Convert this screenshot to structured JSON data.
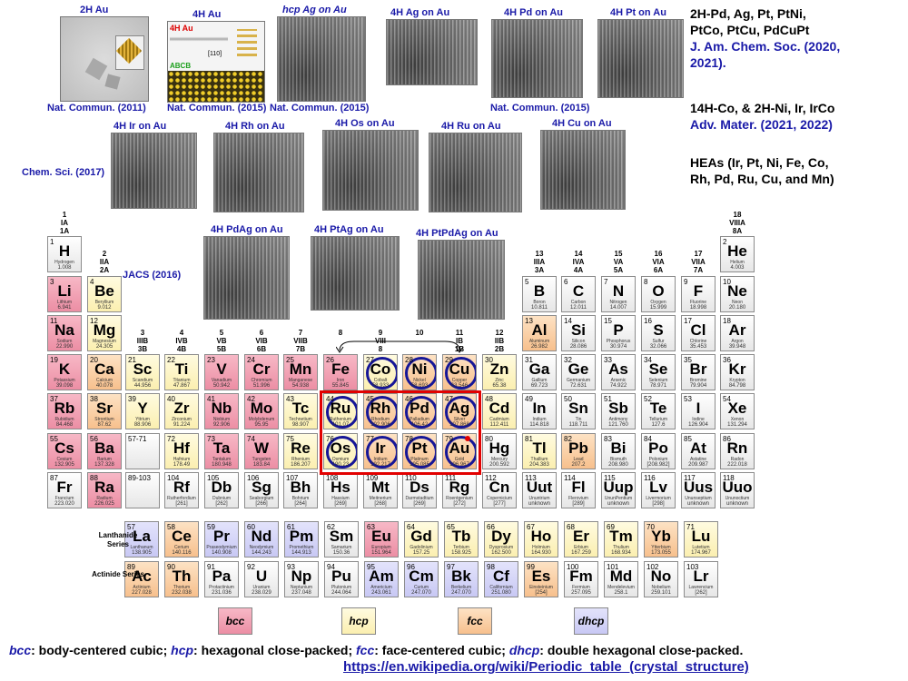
{
  "tem_panels": [
    {
      "label": "2H Au",
      "ref": "Nat. Commun. (2011)"
    },
    {
      "label": "4H Au",
      "ref": "Nat. Commun. (2015)",
      "red_text": "4H Au",
      "green_text": "ABCB",
      "inset": "[110]"
    },
    {
      "label": "hcp Ag on Au",
      "ref": "Nat. Commun. (2015)"
    },
    {
      "label": "4H Ag on Au"
    },
    {
      "label": "4H Pd on Au"
    },
    {
      "label": "4H Pt on Au"
    },
    {
      "label": "4H Ir on Au",
      "ref": "Chem. Sci. (2017)"
    },
    {
      "label": "4H Rh on Au"
    },
    {
      "label": "4H Os on Au"
    },
    {
      "label": "4H Ru on Au"
    },
    {
      "label": "4H Cu on Au"
    },
    {
      "label": "4H PdAg on Au",
      "ref": "JACS (2016)"
    },
    {
      "label": "4H PtAg on Au"
    },
    {
      "label": "4H PtPdAg on Au"
    }
  ],
  "right_text": {
    "block1": [
      "2H-Pd, Ag, Pt, PtNi,",
      "PtCo, PtCu, PdCuPt"
    ],
    "block1_ref": [
      "J. Am. Chem. Soc. (2020,",
      "2021)."
    ],
    "block2": [
      "14H-Co, & 2H-Ni, Ir, IrCo"
    ],
    "block2_ref": [
      "Adv. Mater. (2021, 2022)"
    ],
    "block3": [
      "HEAs (Ir, Pt, Ni, Fe, Co,",
      "Rh, Pd, Ru, Cu, and Mn)"
    ]
  },
  "group_headers": [
    {
      "g": "1",
      "lines": [
        "1",
        "IA",
        "1A"
      ]
    },
    {
      "g": "2",
      "lines": [
        "2",
        "IIA",
        "2A"
      ]
    },
    {
      "g": "3",
      "lines": [
        "3",
        "IIIB",
        "3B"
      ]
    },
    {
      "g": "4",
      "lines": [
        "4",
        "IVB",
        "4B"
      ]
    },
    {
      "g": "5",
      "lines": [
        "5",
        "VB",
        "5B"
      ]
    },
    {
      "g": "6",
      "lines": [
        "6",
        "VIB",
        "6B"
      ]
    },
    {
      "g": "7",
      "lines": [
        "7",
        "VIIB",
        "7B"
      ]
    },
    {
      "g": "8",
      "lines": [
        "8"
      ]
    },
    {
      "g": "9",
      "lines": [
        "9",
        "VIII",
        "8"
      ]
    },
    {
      "g": "10",
      "lines": [
        "10"
      ]
    },
    {
      "g": "11",
      "lines": [
        "11",
        "IB",
        "1B"
      ]
    },
    {
      "g": "12",
      "lines": [
        "12",
        "IIB",
        "2B"
      ]
    },
    {
      "g": "13",
      "lines": [
        "13",
        "IIIA",
        "3A"
      ]
    },
    {
      "g": "14",
      "lines": [
        "14",
        "IVA",
        "4A"
      ]
    },
    {
      "g": "15",
      "lines": [
        "15",
        "VA",
        "5A"
      ]
    },
    {
      "g": "16",
      "lines": [
        "16",
        "VIA",
        "6A"
      ]
    },
    {
      "g": "17",
      "lines": [
        "17",
        "VIIA",
        "7A"
      ]
    },
    {
      "g": "18",
      "lines": [
        "18",
        "VIIIA",
        "8A"
      ]
    }
  ],
  "elements": [
    {
      "z": "1",
      "s": "H",
      "n": "Hydrogen",
      "m": "1.008",
      "c": "other",
      "g": 1,
      "p": 1
    },
    {
      "z": "2",
      "s": "He",
      "n": "Helium",
      "m": "4.003",
      "c": "other",
      "g": 18,
      "p": 1
    },
    {
      "z": "3",
      "s": "Li",
      "n": "Lithium",
      "m": "6.941",
      "c": "bcc",
      "g": 1,
      "p": 2
    },
    {
      "z": "4",
      "s": "Be",
      "n": "Beryllium",
      "m": "9.012",
      "c": "hcp",
      "g": 2,
      "p": 2
    },
    {
      "z": "5",
      "s": "B",
      "n": "Boron",
      "m": "10.811",
      "c": "other",
      "g": 13,
      "p": 2
    },
    {
      "z": "6",
      "s": "C",
      "n": "Carbon",
      "m": "12.011",
      "c": "other",
      "g": 14,
      "p": 2
    },
    {
      "z": "7",
      "s": "N",
      "n": "Nitrogen",
      "m": "14.007",
      "c": "other",
      "g": 15,
      "p": 2
    },
    {
      "z": "8",
      "s": "O",
      "n": "Oxygen",
      "m": "15.999",
      "c": "other",
      "g": 16,
      "p": 2
    },
    {
      "z": "9",
      "s": "F",
      "n": "Fluorine",
      "m": "18.998",
      "c": "other",
      "g": 17,
      "p": 2
    },
    {
      "z": "10",
      "s": "Ne",
      "n": "Neon",
      "m": "20.180",
      "c": "other",
      "g": 18,
      "p": 2
    },
    {
      "z": "11",
      "s": "Na",
      "n": "Sodium",
      "m": "22.990",
      "c": "bcc",
      "g": 1,
      "p": 3
    },
    {
      "z": "12",
      "s": "Mg",
      "n": "Magnesium",
      "m": "24.305",
      "c": "hcp",
      "g": 2,
      "p": 3
    },
    {
      "z": "13",
      "s": "Al",
      "n": "Aluminum",
      "m": "26.982",
      "c": "fcc",
      "g": 13,
      "p": 3
    },
    {
      "z": "14",
      "s": "Si",
      "n": "Silicon",
      "m": "28.086",
      "c": "other",
      "g": 14,
      "p": 3
    },
    {
      "z": "15",
      "s": "P",
      "n": "Phosphorus",
      "m": "30.974",
      "c": "other",
      "g": 15,
      "p": 3
    },
    {
      "z": "16",
      "s": "S",
      "n": "Sulfur",
      "m": "32.066",
      "c": "other",
      "g": 16,
      "p": 3
    },
    {
      "z": "17",
      "s": "Cl",
      "n": "Chlorine",
      "m": "35.453",
      "c": "other",
      "g": 17,
      "p": 3
    },
    {
      "z": "18",
      "s": "Ar",
      "n": "Argon",
      "m": "39.948",
      "c": "other",
      "g": 18,
      "p": 3
    },
    {
      "z": "19",
      "s": "K",
      "n": "Potassium",
      "m": "39.098",
      "c": "bcc",
      "g": 1,
      "p": 4
    },
    {
      "z": "20",
      "s": "Ca",
      "n": "Calcium",
      "m": "40.078",
      "c": "fcc",
      "g": 2,
      "p": 4
    },
    {
      "z": "21",
      "s": "Sc",
      "n": "Scandium",
      "m": "44.956",
      "c": "hcp",
      "g": 3,
      "p": 4
    },
    {
      "z": "22",
      "s": "Ti",
      "n": "Titanium",
      "m": "47.867",
      "c": "hcp",
      "g": 4,
      "p": 4
    },
    {
      "z": "23",
      "s": "V",
      "n": "Vanadium",
      "m": "50.942",
      "c": "bcc",
      "g": 5,
      "p": 4
    },
    {
      "z": "24",
      "s": "Cr",
      "n": "Chromium",
      "m": "51.996",
      "c": "bcc",
      "g": 6,
      "p": 4
    },
    {
      "z": "25",
      "s": "Mn",
      "n": "Manganese",
      "m": "54.938",
      "c": "bcc",
      "g": 7,
      "p": 4
    },
    {
      "z": "26",
      "s": "Fe",
      "n": "Iron",
      "m": "55.845",
      "c": "bcc",
      "g": 8,
      "p": 4
    },
    {
      "z": "27",
      "s": "Co",
      "n": "Cobalt",
      "m": "58.933",
      "c": "hcp",
      "g": 9,
      "p": 4,
      "ring": true
    },
    {
      "z": "28",
      "s": "Ni",
      "n": "Nickel",
      "m": "58.693",
      "c": "fcc",
      "g": 10,
      "p": 4,
      "ring": true
    },
    {
      "z": "29",
      "s": "Cu",
      "n": "Copper",
      "m": "63.546",
      "c": "fcc",
      "g": 11,
      "p": 4,
      "ring": true
    },
    {
      "z": "30",
      "s": "Zn",
      "n": "Zinc",
      "m": "65.38",
      "c": "hcp",
      "g": 12,
      "p": 4
    },
    {
      "z": "31",
      "s": "Ga",
      "n": "Gallium",
      "m": "69.723",
      "c": "other",
      "g": 13,
      "p": 4
    },
    {
      "z": "32",
      "s": "Ge",
      "n": "Germanium",
      "m": "72.631",
      "c": "other",
      "g": 14,
      "p": 4
    },
    {
      "z": "33",
      "s": "As",
      "n": "Arsenic",
      "m": "74.922",
      "c": "other",
      "g": 15,
      "p": 4
    },
    {
      "z": "34",
      "s": "Se",
      "n": "Selenium",
      "m": "78.971",
      "c": "other",
      "g": 16,
      "p": 4
    },
    {
      "z": "35",
      "s": "Br",
      "n": "Bromine",
      "m": "79.904",
      "c": "other",
      "g": 17,
      "p": 4
    },
    {
      "z": "36",
      "s": "Kr",
      "n": "Krypton",
      "m": "84.798",
      "c": "other",
      "g": 18,
      "p": 4
    },
    {
      "z": "37",
      "s": "Rb",
      "n": "Rubidium",
      "m": "84.468",
      "c": "bcc",
      "g": 1,
      "p": 5
    },
    {
      "z": "38",
      "s": "Sr",
      "n": "Strontium",
      "m": "87.62",
      "c": "fcc",
      "g": 2,
      "p": 5
    },
    {
      "z": "39",
      "s": "Y",
      "n": "Yttrium",
      "m": "88.906",
      "c": "hcp",
      "g": 3,
      "p": 5
    },
    {
      "z": "40",
      "s": "Zr",
      "n": "Zirconium",
      "m": "91.224",
      "c": "hcp",
      "g": 4,
      "p": 5
    },
    {
      "z": "41",
      "s": "Nb",
      "n": "Niobium",
      "m": "92.906",
      "c": "bcc",
      "g": 5,
      "p": 5
    },
    {
      "z": "42",
      "s": "Mo",
      "n": "Molybdenum",
      "m": "95.95",
      "c": "bcc",
      "g": 6,
      "p": 5
    },
    {
      "z": "43",
      "s": "Tc",
      "n": "Technetium",
      "m": "98.907",
      "c": "hcp",
      "g": 7,
      "p": 5
    },
    {
      "z": "44",
      "s": "Ru",
      "n": "Ruthenium",
      "m": "101.07",
      "c": "hcp",
      "g": 8,
      "p": 5,
      "ring": true
    },
    {
      "z": "45",
      "s": "Rh",
      "n": "Rhodium",
      "m": "102.906",
      "c": "fcc",
      "g": 9,
      "p": 5,
      "ring": true
    },
    {
      "z": "46",
      "s": "Pd",
      "n": "Palladium",
      "m": "106.42",
      "c": "fcc",
      "g": 10,
      "p": 5,
      "ring": true
    },
    {
      "z": "47",
      "s": "Ag",
      "n": "Silver",
      "m": "107.868",
      "c": "fcc",
      "g": 11,
      "p": 5,
      "ring": true
    },
    {
      "z": "48",
      "s": "Cd",
      "n": "Cadmium",
      "m": "112.411",
      "c": "hcp",
      "g": 12,
      "p": 5
    },
    {
      "z": "49",
      "s": "In",
      "n": "Indium",
      "m": "114.818",
      "c": "other",
      "g": 13,
      "p": 5
    },
    {
      "z": "50",
      "s": "Sn",
      "n": "Tin",
      "m": "118.711",
      "c": "other",
      "g": 14,
      "p": 5
    },
    {
      "z": "51",
      "s": "Sb",
      "n": "Antimony",
      "m": "121.760",
      "c": "other",
      "g": 15,
      "p": 5
    },
    {
      "z": "52",
      "s": "Te",
      "n": "Tellurium",
      "m": "127.6",
      "c": "other",
      "g": 16,
      "p": 5
    },
    {
      "z": "53",
      "s": "I",
      "n": "Iodine",
      "m": "126.904",
      "c": "other",
      "g": 17,
      "p": 5
    },
    {
      "z": "54",
      "s": "Xe",
      "n": "Xenon",
      "m": "131.294",
      "c": "other",
      "g": 18,
      "p": 5
    },
    {
      "z": "55",
      "s": "Cs",
      "n": "Cesium",
      "m": "132.905",
      "c": "bcc",
      "g": 1,
      "p": 6
    },
    {
      "z": "56",
      "s": "Ba",
      "n": "Barium",
      "m": "137.328",
      "c": "bcc",
      "g": 2,
      "p": 6
    },
    {
      "z": "57-71",
      "s": "",
      "n": "",
      "m": "",
      "c": "other",
      "g": 3,
      "p": 6
    },
    {
      "z": "72",
      "s": "Hf",
      "n": "Hafnium",
      "m": "178.49",
      "c": "hcp",
      "g": 4,
      "p": 6
    },
    {
      "z": "73",
      "s": "Ta",
      "n": "Tantalum",
      "m": "180.948",
      "c": "bcc",
      "g": 5,
      "p": 6
    },
    {
      "z": "74",
      "s": "W",
      "n": "Tungsten",
      "m": "183.84",
      "c": "bcc",
      "g": 6,
      "p": 6
    },
    {
      "z": "75",
      "s": "Re",
      "n": "Rhenium",
      "m": "186.207",
      "c": "hcp",
      "g": 7,
      "p": 6
    },
    {
      "z": "76",
      "s": "Os",
      "n": "Osmium",
      "m": "190.23",
      "c": "hcp",
      "g": 8,
      "p": 6,
      "ring": true
    },
    {
      "z": "77",
      "s": "Ir",
      "n": "Iridium",
      "m": "192.217",
      "c": "fcc",
      "g": 9,
      "p": 6,
      "ring": true
    },
    {
      "z": "78",
      "s": "Pt",
      "n": "Platinum",
      "m": "195.085",
      "c": "fcc",
      "g": 10,
      "p": 6,
      "ring": true
    },
    {
      "z": "79",
      "s": "Au",
      "n": "Gold",
      "m": "196.967",
      "c": "fcc",
      "g": 11,
      "p": 6,
      "ring": true,
      "dot": true
    },
    {
      "z": "80",
      "s": "Hg",
      "n": "Mercury",
      "m": "200.592",
      "c": "other",
      "g": 12,
      "p": 6
    },
    {
      "z": "81",
      "s": "Tl",
      "n": "Thallium",
      "m": "204.383",
      "c": "hcp",
      "g": 13,
      "p": 6
    },
    {
      "z": "82",
      "s": "Pb",
      "n": "Lead",
      "m": "207.2",
      "c": "fcc",
      "g": 14,
      "p": 6
    },
    {
      "z": "83",
      "s": "Bi",
      "n": "Bismuth",
      "m": "208.980",
      "c": "other",
      "g": 15,
      "p": 6
    },
    {
      "z": "84",
      "s": "Po",
      "n": "Polonium",
      "m": "[208.982]",
      "c": "other",
      "g": 16,
      "p": 6
    },
    {
      "z": "85",
      "s": "At",
      "n": "Astatine",
      "m": "209.987",
      "c": "other",
      "g": 17,
      "p": 6
    },
    {
      "z": "86",
      "s": "Rn",
      "n": "Radon",
      "m": "222.018",
      "c": "other",
      "g": 18,
      "p": 6
    },
    {
      "z": "87",
      "s": "Fr",
      "n": "Francium",
      "m": "223.020",
      "c": "other",
      "g": 1,
      "p": 7
    },
    {
      "z": "88",
      "s": "Ra",
      "n": "Radium",
      "m": "226.025",
      "c": "bcc",
      "g": 2,
      "p": 7
    },
    {
      "z": "89-103",
      "s": "",
      "n": "",
      "m": "",
      "c": "other",
      "g": 3,
      "p": 7
    },
    {
      "z": "104",
      "s": "Rf",
      "n": "Rutherfordium",
      "m": "[261]",
      "c": "other",
      "g": 4,
      "p": 7
    },
    {
      "z": "105",
      "s": "Db",
      "n": "Dubnium",
      "m": "[262]",
      "c": "other",
      "g": 5,
      "p": 7
    },
    {
      "z": "106",
      "s": "Sg",
      "n": "Seaborgium",
      "m": "[266]",
      "c": "other",
      "g": 6,
      "p": 7
    },
    {
      "z": "107",
      "s": "Bh",
      "n": "Bohrium",
      "m": "[264]",
      "c": "other",
      "g": 7,
      "p": 7
    },
    {
      "z": "108",
      "s": "Hs",
      "n": "Hassium",
      "m": "[269]",
      "c": "other",
      "g": 8,
      "p": 7
    },
    {
      "z": "109",
      "s": "Mt",
      "n": "Meitnerium",
      "m": "[268]",
      "c": "other",
      "g": 9,
      "p": 7
    },
    {
      "z": "110",
      "s": "Ds",
      "n": "Darmstadtium",
      "m": "[269]",
      "c": "other",
      "g": 10,
      "p": 7
    },
    {
      "z": "111",
      "s": "Rg",
      "n": "Roentgenium",
      "m": "[272]",
      "c": "other",
      "g": 11,
      "p": 7
    },
    {
      "z": "112",
      "s": "Cn",
      "n": "Copernicium",
      "m": "[277]",
      "c": "other",
      "g": 12,
      "p": 7
    },
    {
      "z": "113",
      "s": "Uut",
      "n": "Ununtrium",
      "m": "unknown",
      "c": "other",
      "g": 13,
      "p": 7
    },
    {
      "z": "114",
      "s": "Fl",
      "n": "Flerovium",
      "m": "[289]",
      "c": "other",
      "g": 14,
      "p": 7
    },
    {
      "z": "115",
      "s": "Uup",
      "n": "UnunPentium",
      "m": "unknown",
      "c": "other",
      "g": 15,
      "p": 7
    },
    {
      "z": "116",
      "s": "Lv",
      "n": "Livermorium",
      "m": "[298]",
      "c": "other",
      "g": 16,
      "p": 7
    },
    {
      "z": "117",
      "s": "Uus",
      "n": "Ununseptium",
      "m": "unknown",
      "c": "other",
      "g": 17,
      "p": 7
    },
    {
      "z": "118",
      "s": "Uuo",
      "n": "Ununoctium",
      "m": "unknown",
      "c": "other",
      "g": 18,
      "p": 7
    }
  ],
  "lanthanides": [
    {
      "z": "57",
      "s": "La",
      "n": "Lanthanum",
      "m": "138.905",
      "c": "dhcp"
    },
    {
      "z": "58",
      "s": "Ce",
      "n": "Cerium",
      "m": "140.116",
      "c": "fcc"
    },
    {
      "z": "59",
      "s": "Pr",
      "n": "Praseodymium",
      "m": "140.908",
      "c": "dhcp"
    },
    {
      "z": "60",
      "s": "Nd",
      "n": "Neodymium",
      "m": "144.243",
      "c": "dhcp"
    },
    {
      "z": "61",
      "s": "Pm",
      "n": "Promethium",
      "m": "144.913",
      "c": "dhcp"
    },
    {
      "z": "62",
      "s": "Sm",
      "n": "Samarium",
      "m": "150.36",
      "c": "other"
    },
    {
      "z": "63",
      "s": "Eu",
      "n": "Europium",
      "m": "151.964",
      "c": "bcc"
    },
    {
      "z": "64",
      "s": "Gd",
      "n": "Gadolinium",
      "m": "157.25",
      "c": "hcp"
    },
    {
      "z": "65",
      "s": "Tb",
      "n": "Terbium",
      "m": "158.925",
      "c": "hcp"
    },
    {
      "z": "66",
      "s": "Dy",
      "n": "Dysprosium",
      "m": "162.500",
      "c": "hcp"
    },
    {
      "z": "67",
      "s": "Ho",
      "n": "Holmium",
      "m": "164.930",
      "c": "hcp"
    },
    {
      "z": "68",
      "s": "Er",
      "n": "Erbium",
      "m": "167.259",
      "c": "hcp"
    },
    {
      "z": "69",
      "s": "Tm",
      "n": "Thulium",
      "m": "168.934",
      "c": "hcp"
    },
    {
      "z": "70",
      "s": "Yb",
      "n": "Ytterbium",
      "m": "173.055",
      "c": "fcc"
    },
    {
      "z": "71",
      "s": "Lu",
      "n": "Lutetium",
      "m": "174.967",
      "c": "hcp"
    }
  ],
  "actinides": [
    {
      "z": "89",
      "s": "Ac",
      "n": "Actinium",
      "m": "227.028",
      "c": "fcc"
    },
    {
      "z": "90",
      "s": "Th",
      "n": "Thorium",
      "m": "232.038",
      "c": "fcc"
    },
    {
      "z": "91",
      "s": "Pa",
      "n": "Protactinium",
      "m": "231.036",
      "c": "other"
    },
    {
      "z": "92",
      "s": "U",
      "n": "Uranium",
      "m": "238.029",
      "c": "other"
    },
    {
      "z": "93",
      "s": "Np",
      "n": "Neptunium",
      "m": "237.048",
      "c": "other"
    },
    {
      "z": "94",
      "s": "Pu",
      "n": "Plutonium",
      "m": "244.064",
      "c": "other"
    },
    {
      "z": "95",
      "s": "Am",
      "n": "Americium",
      "m": "243.061",
      "c": "dhcp"
    },
    {
      "z": "96",
      "s": "Cm",
      "n": "Curium",
      "m": "247.070",
      "c": "dhcp"
    },
    {
      "z": "97",
      "s": "Bk",
      "n": "Berkelium",
      "m": "247.070",
      "c": "dhcp"
    },
    {
      "z": "98",
      "s": "Cf",
      "n": "Californium",
      "m": "251.080",
      "c": "dhcp"
    },
    {
      "z": "99",
      "s": "Es",
      "n": "Einsteinium",
      "m": "[254]",
      "c": "fcc"
    },
    {
      "z": "100",
      "s": "Fm",
      "n": "Fermium",
      "m": "257.095",
      "c": "other"
    },
    {
      "z": "101",
      "s": "Md",
      "n": "Mendelevium",
      "m": "258.1",
      "c": "other"
    },
    {
      "z": "102",
      "s": "No",
      "n": "Nobelium",
      "m": "259.101",
      "c": "other"
    },
    {
      "z": "103",
      "s": "Lr",
      "n": "Lawrencium",
      "m": "[262]",
      "c": "other"
    }
  ],
  "series_labels": {
    "lanthanide": "Lanthanide Series",
    "actinide": "Actinide Series"
  },
  "legend": [
    {
      "key": "bcc",
      "label": "bcc",
      "color": "#ec8ea4"
    },
    {
      "key": "hcp",
      "label": "hcp",
      "color": "#fbefb0"
    },
    {
      "key": "fcc",
      "label": "fcc",
      "color": "#f7c08d"
    },
    {
      "key": "dhcp",
      "label": "dhcp",
      "color": "#c8c8f4"
    }
  ],
  "definitions": [
    {
      "abbr": "bcc",
      "text": ": body-centered cubic;  "
    },
    {
      "abbr": "hcp",
      "text": ": hexagonal close-packed;  "
    },
    {
      "abbr": "fcc",
      "text": ": face-centered cubic;  "
    },
    {
      "abbr": "dhcp",
      "text": ": double hexagonal close-packed."
    }
  ],
  "url": "https://en.wikipedia.org/wiki/Periodic_table_(crystal_structure)",
  "highlight_color": "#e20000",
  "ring_color": "#161697"
}
